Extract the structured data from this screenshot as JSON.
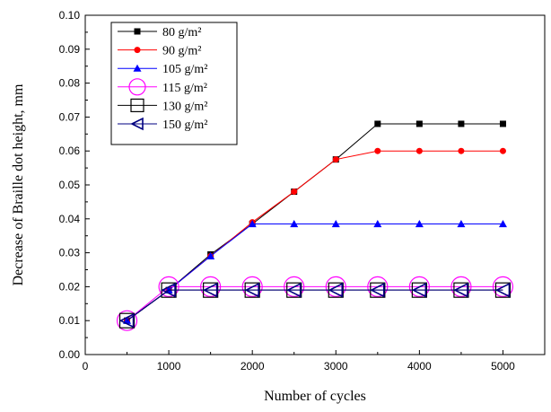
{
  "chart_data": {
    "type": "line",
    "title": "",
    "xlabel": "Number of cycles",
    "ylabel": "Decrease of Braille dot height, mm",
    "xlim": [
      0,
      5500
    ],
    "ylim": [
      0,
      0.1
    ],
    "xticks": [
      0,
      1000,
      2000,
      3000,
      4000,
      5000
    ],
    "xtick_labels": [
      "0",
      "1000",
      "2000",
      "3000",
      "4000",
      "5000"
    ],
    "yticks": [
      0,
      0.01,
      0.02,
      0.03,
      0.04,
      0.05,
      0.06,
      0.07,
      0.08,
      0.09,
      0.1
    ],
    "ytick_labels": [
      "0.00",
      "0.01",
      "0.02",
      "0.03",
      "0.04",
      "0.05",
      "0.06",
      "0.07",
      "0.08",
      "0.09",
      "0.10"
    ],
    "grid": false,
    "legend_position": "top-left",
    "x": [
      500,
      1000,
      1500,
      2000,
      2500,
      3000,
      3500,
      4000,
      4500,
      5000
    ],
    "series": [
      {
        "name": "80 g/m²",
        "color": "#000000",
        "marker": "filled-square",
        "values": [
          0.01,
          0.019,
          0.0295,
          0.0385,
          0.048,
          0.0575,
          0.068,
          0.068,
          0.068,
          0.068
        ]
      },
      {
        "name": "90 g/m²",
        "color": "#ff0000",
        "marker": "filled-circle",
        "values": [
          0.01,
          0.019,
          0.029,
          0.039,
          0.048,
          0.0575,
          0.06,
          0.06,
          0.06,
          0.06
        ]
      },
      {
        "name": "105 g/m²",
        "color": "#0000ff",
        "marker": "filled-triangle",
        "values": [
          0.01,
          0.019,
          0.029,
          0.0385,
          0.0385,
          0.0385,
          0.0385,
          0.0385,
          0.0385,
          0.0385
        ]
      },
      {
        "name": "115 g/m²",
        "color": "#ff00ff",
        "marker": "open-circle",
        "values": [
          0.01,
          0.02,
          0.02,
          0.02,
          0.02,
          0.02,
          0.02,
          0.02,
          0.02,
          0.02
        ]
      },
      {
        "name": "130 g/m²",
        "color": "#000000",
        "marker": "open-square",
        "values": [
          0.01,
          0.019,
          0.019,
          0.019,
          0.019,
          0.019,
          0.019,
          0.019,
          0.019,
          0.019
        ]
      },
      {
        "name": "150 g/m²",
        "color": "#000080",
        "marker": "open-left-triangle",
        "values": [
          0.01,
          0.019,
          0.019,
          0.019,
          0.019,
          0.019,
          0.019,
          0.019,
          0.019,
          0.019
        ]
      }
    ]
  }
}
